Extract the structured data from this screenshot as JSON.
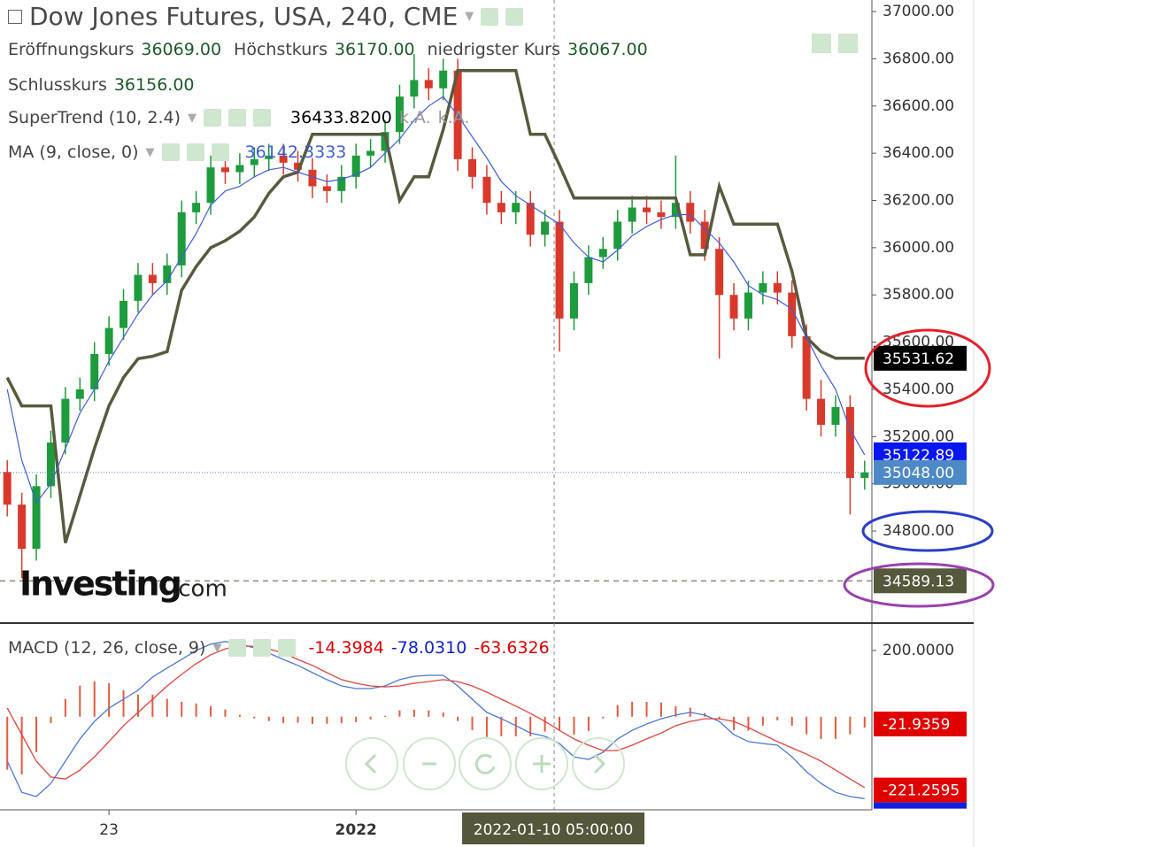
{
  "chart_data": [
    {
      "type": "candlestick",
      "title": "Dow Jones Futures, USA, 240, CME",
      "ohlc_legend": [
        {
          "name": "Eröffnungskurs",
          "value": "36069.00"
        },
        {
          "name": "Höchstkurs",
          "value": "36170.00"
        },
        {
          "name": "niedrigster Kurs",
          "value": "36067.00"
        },
        {
          "name": "Schlusskurs",
          "value": "36156.00"
        }
      ],
      "categories": [
        null,
        null,
        null,
        null,
        null,
        null,
        null,
        "23",
        null,
        null,
        null,
        null,
        null,
        null,
        null,
        null,
        null,
        null,
        null,
        null,
        null,
        null,
        null,
        null,
        "2022",
        null,
        null,
        null,
        null,
        null,
        null,
        null,
        null,
        null,
        null,
        null,
        null,
        null,
        "2022-01-10 05:00:00",
        null,
        null,
        null,
        null,
        null,
        null,
        null,
        null,
        null,
        null,
        null,
        null,
        null,
        null,
        null,
        null,
        null,
        null,
        null,
        null,
        null
      ],
      "open": [
        35050,
        34912,
        34725,
        34990,
        35175,
        35360,
        35400,
        35550,
        35660,
        35775,
        35885,
        35850,
        35925,
        36150,
        36190,
        36340,
        36320,
        36350,
        36375,
        36390,
        36360,
        36330,
        36260,
        36240,
        36300,
        36390,
        36410,
        36490,
        36640,
        36710,
        36675,
        36750,
        36375,
        36300,
        36190,
        36150,
        36190,
        36055,
        36110,
        35700,
        35850,
        35960,
        35995,
        36110,
        36170,
        36150,
        36130,
        36190,
        36110,
        35995,
        35800,
        35700,
        35810,
        35850,
        35810,
        35625,
        35360,
        35250,
        35325,
        35025
      ],
      "high": [
        35100,
        34962,
        35040,
        35225,
        35410,
        35450,
        35600,
        35710,
        35825,
        35935,
        35935,
        35975,
        36200,
        36240,
        36390,
        36390,
        36400,
        36425,
        36440,
        36440,
        36410,
        36380,
        36310,
        36350,
        36440,
        36460,
        36540,
        36690,
        36820,
        36760,
        36800,
        36800,
        36425,
        36350,
        36240,
        36240,
        36240,
        36160,
        36160,
        35900,
        36010,
        36045,
        36160,
        36220,
        36220,
        36200,
        36390,
        36240,
        36160,
        36045,
        35850,
        35860,
        35900,
        35900,
        35860,
        35675,
        35440,
        35375,
        35375,
        35098
      ],
      "low": [
        34862,
        34600,
        34675,
        34940,
        35125,
        35310,
        35350,
        35500,
        35610,
        35725,
        35800,
        35800,
        35875,
        36100,
        36140,
        36270,
        36270,
        36300,
        36325,
        36310,
        36280,
        36210,
        36190,
        36190,
        36250,
        36340,
        36360,
        36440,
        36590,
        36625,
        36625,
        36325,
        36250,
        36140,
        36100,
        36100,
        36005,
        36005,
        35560,
        35650,
        35800,
        35910,
        35945,
        36060,
        36100,
        36080,
        36080,
        36060,
        35945,
        35530,
        35650,
        35650,
        35760,
        35760,
        35575,
        35310,
        35200,
        35200,
        34870,
        34975
      ],
      "close": [
        34912,
        34725,
        34990,
        35175,
        35360,
        35400,
        35550,
        35660,
        35775,
        35885,
        35850,
        35925,
        36150,
        36190,
        36340,
        36320,
        36350,
        36375,
        36390,
        36360,
        36330,
        36260,
        36240,
        36300,
        36390,
        36410,
        36490,
        36640,
        36710,
        36675,
        36750,
        36375,
        36300,
        36190,
        36150,
        36190,
        36055,
        36110,
        35700,
        35850,
        35960,
        35995,
        36110,
        36170,
        36150,
        36130,
        36190,
        36110,
        35995,
        35800,
        35700,
        35810,
        35850,
        35810,
        35625,
        35360,
        35250,
        35325,
        35025,
        35048
      ],
      "up_color": "#1e9b3c",
      "down_color": "#d8392b",
      "series": [
        {
          "name": "SuperTrend (10, 2.4)",
          "color": "#585a3e",
          "legend_values": [
            "36433.8200",
            "k.A.",
            "k.A."
          ],
          "values": [
            35450,
            35330,
            35330,
            35330,
            34750,
            34950,
            35150,
            35330,
            35450,
            35530,
            35540,
            35560,
            35820,
            35920,
            36000,
            36030,
            36070,
            36130,
            36230,
            36300,
            36320,
            36480,
            36480,
            36480,
            36480,
            36480,
            36480,
            36200,
            36300,
            36300,
            36500,
            36750,
            36750,
            36750,
            36750,
            36750,
            36480,
            36480,
            36350,
            36210,
            36210,
            36210,
            36210,
            36210,
            36210,
            36210,
            36210,
            35970,
            35970,
            36260,
            36100,
            36100,
            36100,
            36100,
            35900,
            35620,
            35560,
            35531.62,
            35531.62,
            35531.62
          ]
        },
        {
          "name": "MA (9, close, 0)",
          "color": "#3f5fd8",
          "legend_values": [
            "36142.3333"
          ],
          "values": [
            35400,
            35100,
            34920,
            35000,
            35150,
            35300,
            35400,
            35520,
            35620,
            35720,
            35800,
            35860,
            35960,
            36060,
            36180,
            36240,
            36260,
            36300,
            36330,
            36340,
            36320,
            36300,
            36280,
            36290,
            36310,
            36340,
            36400,
            36460,
            36540,
            36600,
            36640,
            36560,
            36470,
            36380,
            36280,
            36220,
            36180,
            36140,
            36100,
            36020,
            35960,
            35940,
            35990,
            36050,
            36090,
            36120,
            36140,
            36140,
            36080,
            36020,
            35940,
            35840,
            35800,
            35780,
            35740,
            35620,
            35500,
            35400,
            35230,
            35122.89
          ]
        }
      ],
      "ylim": [
        34414,
        37049
      ],
      "yticks": [
        {
          "value": 34800,
          "label": "34800.00"
        },
        {
          "value": 35000,
          "label": "35000.00"
        },
        {
          "value": 35200,
          "label": "35200.00"
        },
        {
          "value": 35400,
          "label": "35400.00"
        },
        {
          "value": 35600,
          "label": "35600.00"
        },
        {
          "value": 35800,
          "label": "35800.00"
        },
        {
          "value": 36000,
          "label": "36000.00"
        },
        {
          "value": 36200,
          "label": "36200.00"
        },
        {
          "value": 36400,
          "label": "36400.00"
        },
        {
          "value": 36600,
          "label": "36600.00"
        },
        {
          "value": 36800,
          "label": "36800.00"
        },
        {
          "value": 37000,
          "label": "37000.00"
        }
      ],
      "price_tags": [
        {
          "value": 35531.62,
          "color": "#000000"
        },
        {
          "value": 35122.89,
          "color": "#0a16f0"
        },
        {
          "value": 35048,
          "label": "35048.00",
          "color": "#4d89c6",
          "line": "dotted"
        },
        {
          "value": 34589.13,
          "color": "#56573b",
          "line": "dashed"
        }
      ],
      "logo": [
        "Investing",
        ".com"
      ]
    },
    {
      "type": "macd",
      "title": "MACD (12, 26, close, 9)",
      "legend_values": [
        {
          "label": "-14.3984",
          "color": "#e00000"
        },
        {
          "label": "-78.0310",
          "color": "#1020d0"
        },
        {
          "label": "-63.6326",
          "color": "#e00000"
        }
      ],
      "series": [
        {
          "color": "#4a78d8",
          "values": [
            -134,
            -228,
            -241,
            -201,
            -134,
            -67,
            -14,
            26,
            53,
            80,
            120,
            147,
            173,
            200,
            219,
            227,
            219,
            208,
            192,
            173,
            155,
            133,
            112,
            93,
            85,
            85,
            93,
            112,
            122,
            125,
            125,
            93,
            53,
            13,
            -6,
            -27,
            -49,
            -59,
            -81,
            -121,
            -129,
            -107,
            -67,
            -41,
            -22,
            -6,
            5,
            13,
            5,
            -14,
            -54,
            -75,
            -81,
            -86,
            -121,
            -166,
            -201,
            -228,
            -241,
            -247
          ]
        },
        {
          "color": "#e0443c",
          "values": [
            26,
            -54,
            -134,
            -182,
            -188,
            -161,
            -121,
            -75,
            -27,
            13,
            53,
            93,
            128,
            160,
            187,
            205,
            213,
            213,
            205,
            192,
            173,
            155,
            133,
            112,
            101,
            93,
            90,
            93,
            101,
            106,
            112,
            106,
            93,
            74,
            53,
            32,
            10,
            -14,
            -41,
            -67,
            -86,
            -102,
            -102,
            -86,
            -67,
            -49,
            -27,
            -14,
            -6,
            -6,
            -14,
            -33,
            -54,
            -75,
            -94,
            -113,
            -134,
            -161,
            -188,
            -214
          ]
        }
      ],
      "histogram": {
        "color": "#e35b3f",
        "values": [
          -160,
          -174,
          -107,
          -19,
          54,
          94,
          107,
          101,
          80,
          67,
          67,
          54,
          45,
          40,
          32,
          22,
          6,
          -5,
          -13,
          -19,
          -18,
          -22,
          -21,
          -19,
          -16,
          -8,
          3,
          19,
          21,
          19,
          13,
          -13,
          -40,
          -61,
          -59,
          -59,
          -59,
          -45,
          -40,
          -54,
          -43,
          -5,
          35,
          45,
          45,
          43,
          32,
          27,
          11,
          -8,
          -40,
          -42,
          -27,
          -11,
          -27,
          -53,
          -67,
          -67,
          -53,
          -33
        ]
      },
      "ylim": [
        -281,
        280
      ],
      "yticks": [
        {
          "value": 200,
          "label": "200.0000"
        }
      ],
      "price_tags": [
        {
          "value": -21.9359,
          "color": "#e00000"
        },
        {
          "value": -221.2595,
          "color": "#e00000",
          "underline": "#1020e0"
        }
      ]
    }
  ]
}
